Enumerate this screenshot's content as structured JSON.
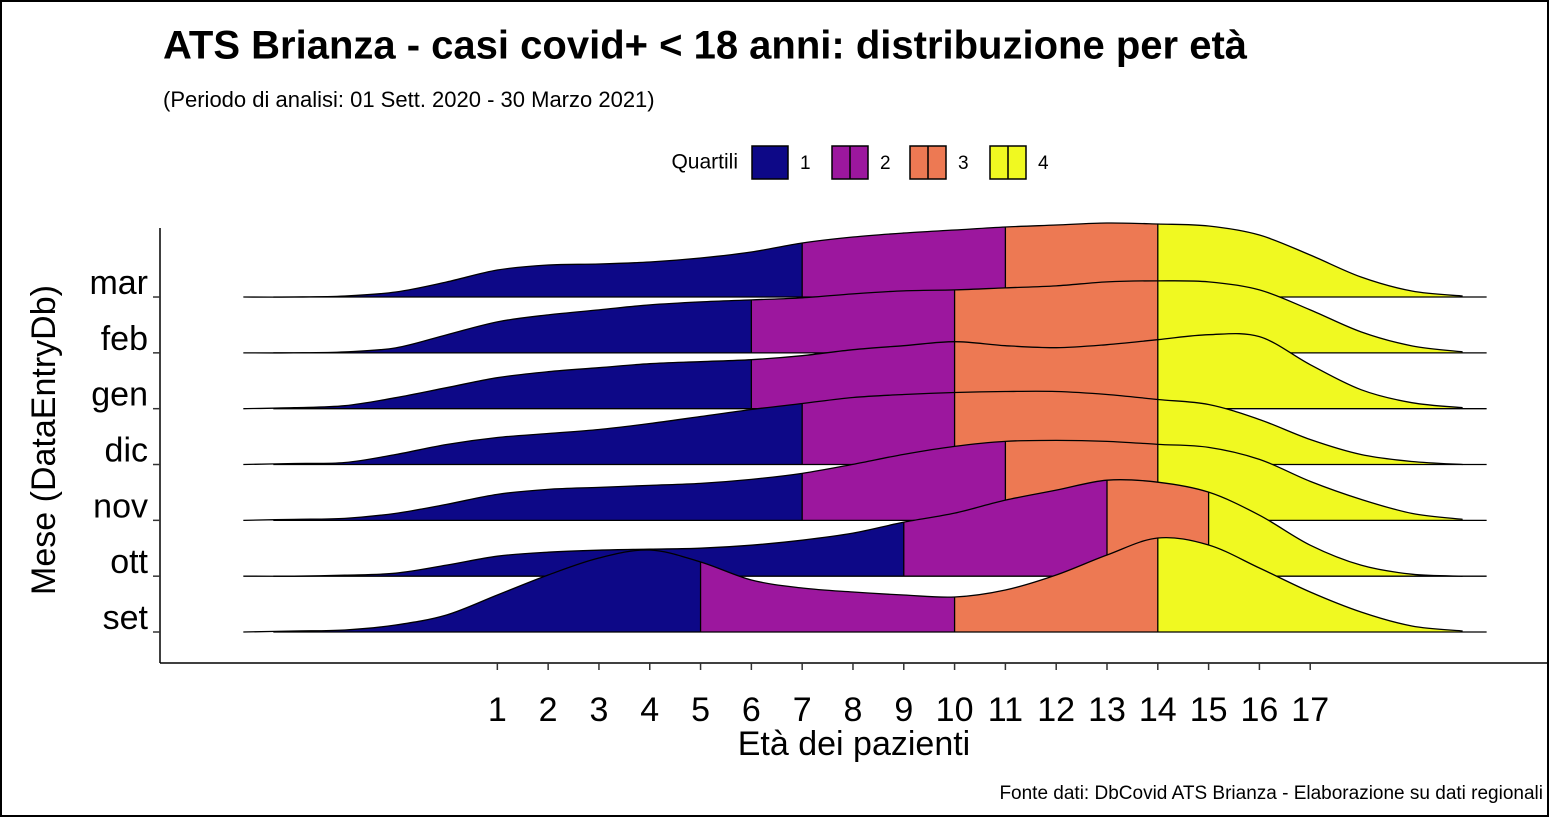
{
  "chart_data": {
    "type": "ridgeline",
    "title": "ATS Brianza - casi covid+ < 18 anni: distribuzione per età",
    "subtitle": "(Periodo di analisi: 01 Sett. 2020 - 30 Marzo 2021)",
    "caption": "Fonte dati: DbCovid ATS Brianza - Elaborazione su dati regionali",
    "x_label": "Età dei pazienti",
    "y_label": "Mese (DataEntryDb)",
    "legend": {
      "title": "Quartili",
      "labels": [
        "1",
        "2",
        "3",
        "4"
      ],
      "colors": [
        "#0d0887",
        "#9c179e",
        "#ed7953",
        "#f0f921"
      ]
    },
    "categories": [
      "set",
      "ott",
      "nov",
      "dic",
      "gen",
      "feb",
      "mar"
    ],
    "x": [
      -4,
      -3,
      -2,
      -1,
      0,
      1,
      2,
      3,
      4,
      5,
      6,
      7,
      8,
      9,
      10,
      11,
      12,
      13,
      14,
      15,
      16,
      17,
      18,
      19,
      20
    ],
    "ridges": [
      {
        "values": [
          0,
          1,
          2,
          7,
          17,
          37,
          57,
          74,
          82,
          70,
          52,
          44,
          40,
          37,
          35,
          42,
          57,
          77,
          94,
          87,
          64,
          40,
          20,
          6,
          1
        ],
        "quartile_breaks": [
          5,
          10,
          14
        ]
      },
      {
        "values": [
          0,
          0,
          1,
          3,
          11,
          20,
          24,
          26,
          27,
          28,
          31,
          36,
          43,
          54,
          63,
          76,
          86,
          96,
          94,
          84,
          61,
          31,
          11,
          2,
          0
        ],
        "quartile_breaks": [
          9,
          13,
          15
        ]
      },
      {
        "values": [
          0,
          1,
          2,
          7,
          16,
          26,
          31,
          33,
          35,
          37,
          41,
          47,
          56,
          66,
          74,
          79,
          80,
          79,
          76,
          73,
          61,
          39,
          21,
          7,
          1
        ],
        "quartile_breaks": [
          7,
          11,
          14
        ]
      },
      {
        "values": [
          0,
          1,
          2,
          10,
          20,
          27,
          31,
          35,
          41,
          48,
          55,
          61,
          67,
          70,
          72,
          73,
          73,
          70,
          65,
          60,
          45,
          25,
          10,
          3,
          0
        ],
        "quartile_breaks": [
          7,
          10,
          14
        ]
      },
      {
        "values": [
          0,
          1,
          3,
          11,
          21,
          31,
          37,
          41,
          45,
          47,
          49,
          53,
          59,
          63,
          67,
          63,
          61,
          64,
          69,
          74,
          72,
          44,
          19,
          6,
          1
        ],
        "quartile_breaks": [
          6,
          10,
          14
        ]
      },
      {
        "values": [
          0,
          0,
          1,
          5,
          18,
          31,
          38,
          43,
          48,
          51,
          53,
          55,
          59,
          62,
          63,
          65,
          67,
          71,
          72,
          71,
          63,
          43,
          21,
          7,
          1
        ],
        "quartile_breaks": [
          6,
          10,
          14
        ]
      },
      {
        "values": [
          0,
          0,
          1,
          5,
          15,
          27,
          32,
          33,
          35,
          39,
          45,
          54,
          60,
          64,
          67,
          70,
          72,
          74,
          73,
          71,
          62,
          42,
          20,
          6,
          1
        ],
        "quartile_breaks": [
          7,
          11,
          14
        ]
      }
    ],
    "xlim": [
      -5.64,
      21.7
    ],
    "xticks": [
      1,
      2,
      3,
      4,
      5,
      6,
      7,
      8,
      9,
      10,
      11,
      12,
      13,
      14,
      15,
      16,
      17
    ]
  }
}
